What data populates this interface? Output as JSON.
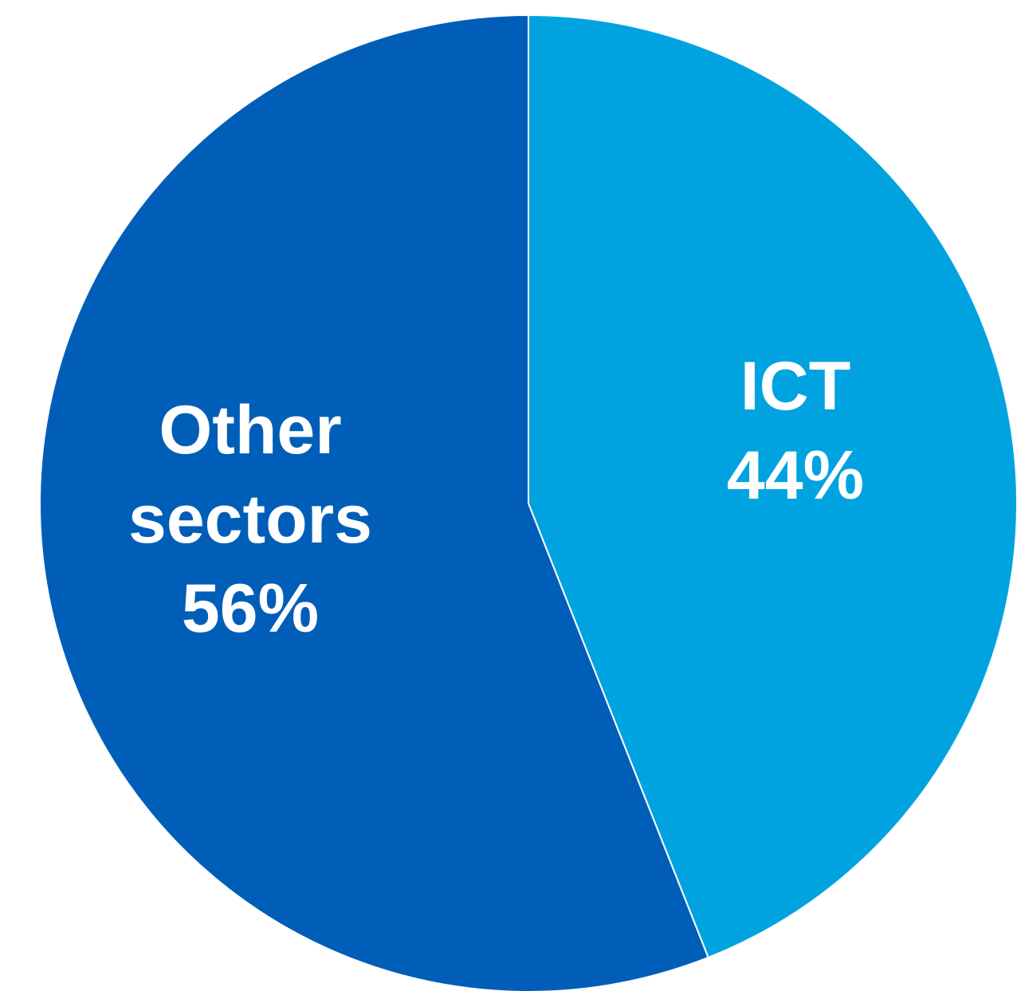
{
  "chart_data": {
    "type": "pie",
    "slices": [
      {
        "name": "ICT",
        "value": 44,
        "value_label": "44%",
        "color": "#00a3e0"
      },
      {
        "name": "Other sectors",
        "value": 56,
        "value_label": "56%",
        "color": "#005eb8"
      }
    ],
    "start_angle": "12 o'clock",
    "direction": "clockwise",
    "separator_color": "#ffffff"
  }
}
